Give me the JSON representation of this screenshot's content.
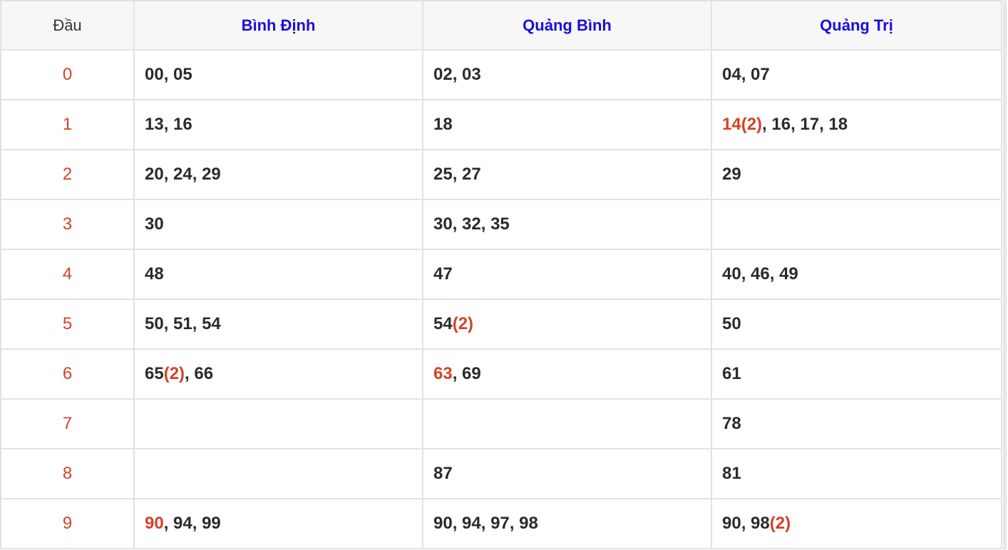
{
  "colors": {
    "accent_red": "#d5412a",
    "header_blue": "#1a0dde",
    "text_dark": "#2b2b2b",
    "header_bg": "#f7f7f7",
    "border": "#e2e2e2"
  },
  "table": {
    "header": {
      "dau": "Đầu",
      "columns": [
        "Bình Định",
        "Quảng Bình",
        "Quảng Trị"
      ]
    },
    "rows": [
      {
        "digit": "0",
        "cells": [
          [
            {
              "text": "00, 05",
              "red": false
            }
          ],
          [
            {
              "text": "02, 03",
              "red": false
            }
          ],
          [
            {
              "text": "04, 07",
              "red": false
            }
          ]
        ]
      },
      {
        "digit": "1",
        "cells": [
          [
            {
              "text": "13, 16",
              "red": false
            }
          ],
          [
            {
              "text": "18",
              "red": false
            }
          ],
          [
            {
              "text": "14(2)",
              "red": true
            },
            {
              "text": ", 16, 17, 18",
              "red": false
            }
          ]
        ]
      },
      {
        "digit": "2",
        "cells": [
          [
            {
              "text": "20, 24, 29",
              "red": false
            }
          ],
          [
            {
              "text": "25, 27",
              "red": false
            }
          ],
          [
            {
              "text": "29",
              "red": false
            }
          ]
        ]
      },
      {
        "digit": "3",
        "cells": [
          [
            {
              "text": "30",
              "red": false
            }
          ],
          [
            {
              "text": "30, 32, 35",
              "red": false
            }
          ],
          []
        ]
      },
      {
        "digit": "4",
        "cells": [
          [
            {
              "text": "48",
              "red": false
            }
          ],
          [
            {
              "text": "47",
              "red": false
            }
          ],
          [
            {
              "text": "40, 46, 49",
              "red": false
            }
          ]
        ]
      },
      {
        "digit": "5",
        "cells": [
          [
            {
              "text": "50, 51, 54",
              "red": false
            }
          ],
          [
            {
              "text": "54",
              "red": false
            },
            {
              "text": "(2)",
              "red": true
            }
          ],
          [
            {
              "text": "50",
              "red": false
            }
          ]
        ]
      },
      {
        "digit": "6",
        "cells": [
          [
            {
              "text": "65",
              "red": false
            },
            {
              "text": "(2)",
              "red": true
            },
            {
              "text": ", 66",
              "red": false
            }
          ],
          [
            {
              "text": "63",
              "red": true
            },
            {
              "text": ", 69",
              "red": false
            }
          ],
          [
            {
              "text": "61",
              "red": false
            }
          ]
        ]
      },
      {
        "digit": "7",
        "cells": [
          [],
          [],
          [
            {
              "text": "78",
              "red": false
            }
          ]
        ]
      },
      {
        "digit": "8",
        "cells": [
          [],
          [
            {
              "text": "87",
              "red": false
            }
          ],
          [
            {
              "text": "81",
              "red": false
            }
          ]
        ]
      },
      {
        "digit": "9",
        "cells": [
          [
            {
              "text": "90",
              "red": true
            },
            {
              "text": ", 94, 99",
              "red": false
            }
          ],
          [
            {
              "text": "90, 94, 97, 98",
              "red": false
            }
          ],
          [
            {
              "text": "90, 98",
              "red": false
            },
            {
              "text": "(2)",
              "red": true
            }
          ]
        ]
      }
    ]
  }
}
